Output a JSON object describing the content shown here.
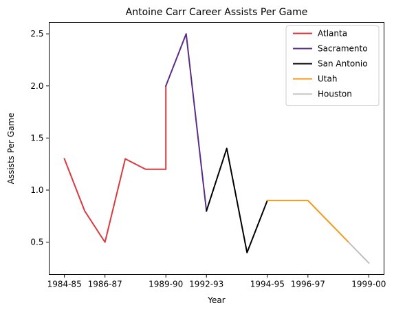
{
  "chart_data": {
    "type": "line",
    "title": "Antoine Carr Career Assists Per Game",
    "xlabel": "Year",
    "ylabel": "Assists Per Game",
    "x_tick_labels": [
      "1984-85",
      "1986-87",
      "1989-90",
      "1992-93",
      "1994-95",
      "1996-97",
      "1999-00"
    ],
    "x_ticks_index": [
      0,
      2,
      5,
      7,
      10,
      12,
      15
    ],
    "y_ticks": [
      0.5,
      1.0,
      1.5,
      2.0,
      2.5
    ],
    "y_tick_labels": [
      "0.5",
      "1.0",
      "1.5",
      "2.0",
      "2.5"
    ],
    "xlim": [
      -0.75,
      15.75
    ],
    "ylim": [
      0.19,
      2.61
    ],
    "grid": false,
    "legend_position": "top-right",
    "series": [
      {
        "name": "Atlanta",
        "color": "#d9383f",
        "x": [
          0,
          1,
          2,
          3,
          4,
          5,
          5
        ],
        "y": [
          1.3,
          0.8,
          0.5,
          1.3,
          1.2,
          1.2,
          2.0
        ]
      },
      {
        "name": "Sacramento",
        "color": "#5b2c86",
        "x": [
          5,
          6,
          7
        ],
        "y": [
          2.0,
          2.5,
          0.8
        ]
      },
      {
        "name": "San Antonio",
        "color": "#000000",
        "x": [
          7,
          8,
          9,
          10
        ],
        "y": [
          0.8,
          1.4,
          0.4,
          0.9
        ]
      },
      {
        "name": "Utah",
        "color": "#f39a1c",
        "x": [
          10,
          11,
          12,
          13,
          14
        ],
        "y": [
          0.9,
          0.9,
          0.9,
          0.7,
          0.5
        ]
      },
      {
        "name": "Houston",
        "color": "#bfbfbf",
        "x": [
          14,
          15
        ],
        "y": [
          0.5,
          0.3
        ]
      }
    ]
  }
}
